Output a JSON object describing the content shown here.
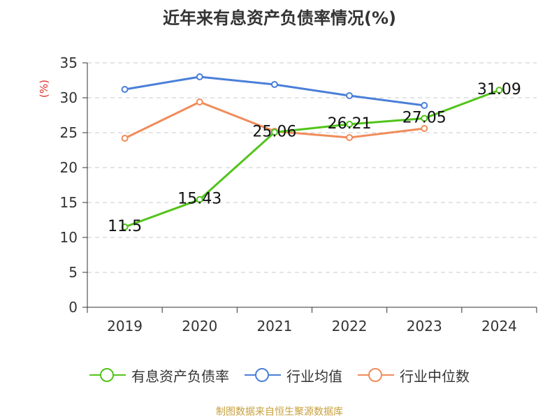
{
  "title": "近年来有息资产负债率情况(%)",
  "source": "制图数据来自恒生聚源数据库",
  "chart_data": {
    "type": "line",
    "title": "近年来有息资产负债率情况(%)",
    "ylabel": "(%)",
    "xlabel": "",
    "categories": [
      "2019",
      "2020",
      "2021",
      "2022",
      "2023",
      "2024"
    ],
    "ylim": [
      0,
      35
    ],
    "yticks": [
      0,
      5,
      10,
      15,
      20,
      25,
      30,
      35
    ],
    "grid": true,
    "legend_position": "bottom",
    "series": [
      {
        "name": "有息资产负债率",
        "color": "#52c41a",
        "values": [
          11.5,
          15.43,
          25.06,
          26.21,
          27.05,
          31.09
        ],
        "labels": [
          "11.5",
          "15.43",
          "25.06",
          "26.21",
          "27.05",
          "31.09"
        ]
      },
      {
        "name": "行业均值",
        "color": "#4a7fd8",
        "values": [
          31.2,
          33.0,
          31.9,
          30.3,
          28.9,
          null
        ]
      },
      {
        "name": "行业中位数",
        "color": "#f08c5a",
        "values": [
          24.2,
          29.4,
          25.2,
          24.3,
          25.6,
          null
        ]
      }
    ]
  }
}
